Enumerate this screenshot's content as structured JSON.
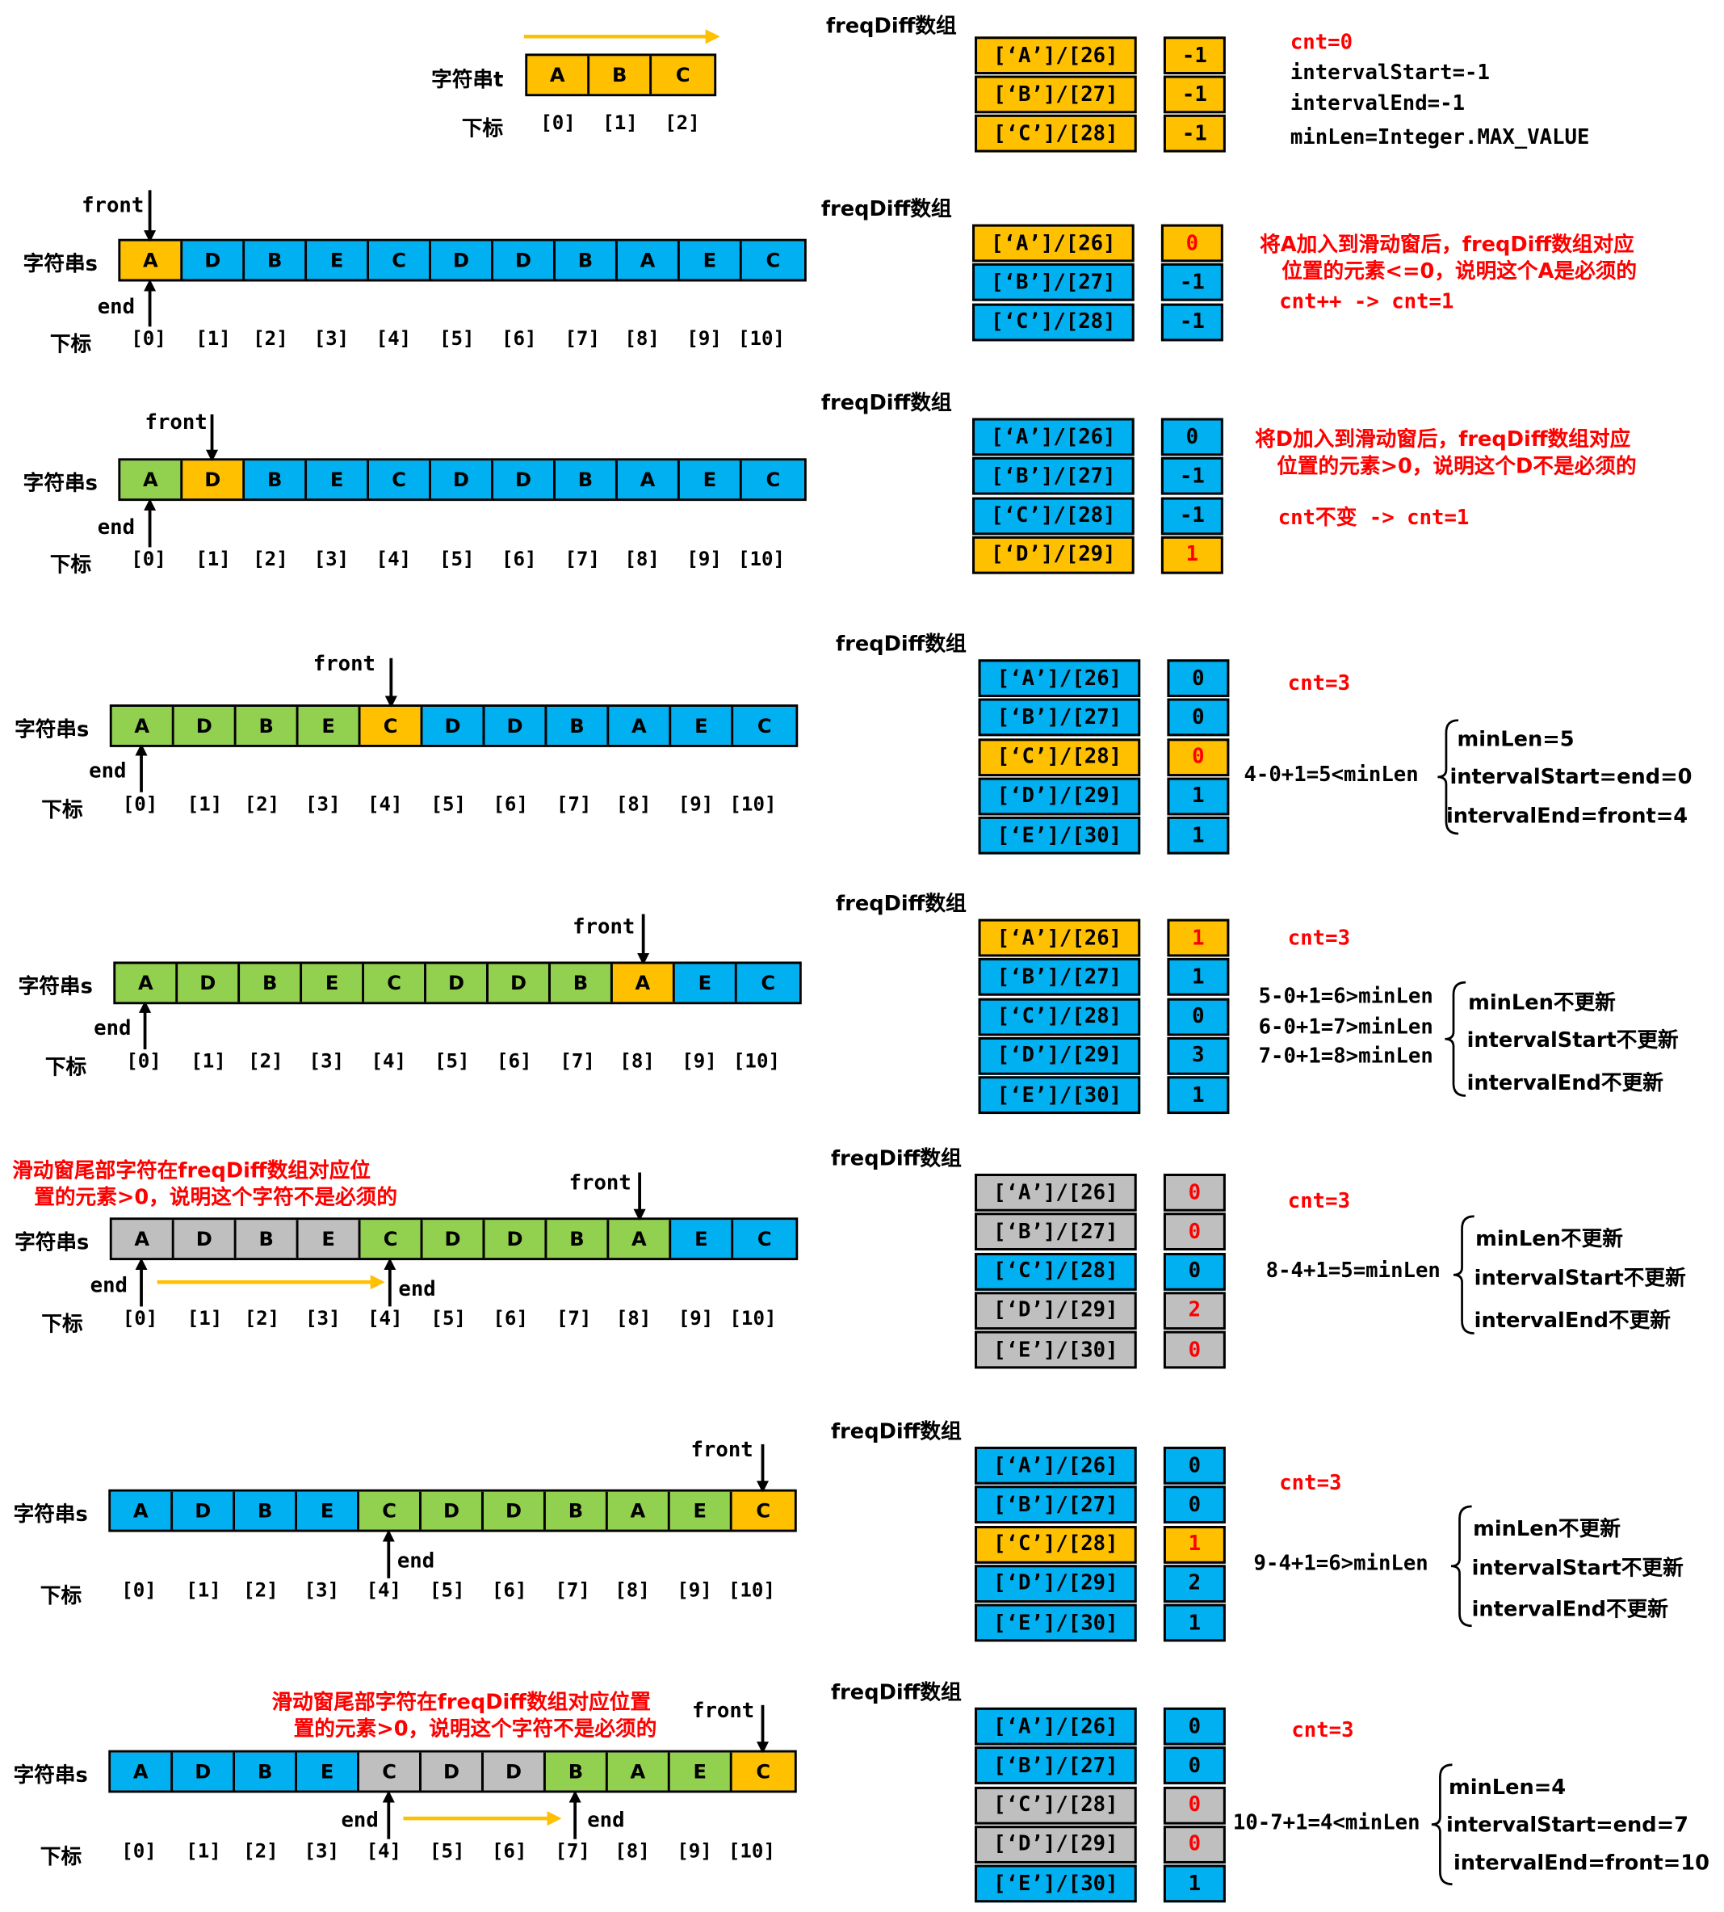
{
  "labels": {
    "string_t": "字符串t",
    "string_s": "字符串s",
    "index": "下标",
    "front": "front",
    "end": "end",
    "freq_title": "freqDiff数组"
  },
  "colors": {
    "blue": "#00b0f0",
    "orange": "#ffc000",
    "green": "#92d050",
    "gray": "#bfbfbf",
    "red": "#ff0000"
  },
  "header": {
    "t_chars": [
      "A",
      "B",
      "C"
    ],
    "t_indices": [
      "[0]",
      "[1]",
      "[2]"
    ],
    "freq": [
      {
        "key": "[‘A’]/[26]",
        "val": "-1"
      },
      {
        "key": "[‘B’]/[27]",
        "val": "-1"
      },
      {
        "key": "[‘C’]/[28]",
        "val": "-1"
      }
    ],
    "vars": [
      "cnt=0",
      "intervalStart=-1",
      "intervalEnd=-1",
      "minLen=Integer.MAX_VALUE"
    ]
  },
  "s_chars": [
    "A",
    "D",
    "B",
    "E",
    "C",
    "D",
    "D",
    "B",
    "A",
    "E",
    "C"
  ],
  "s_indices": [
    "[0]",
    "[1]",
    "[2]",
    "[3]",
    "[4]",
    "[5]",
    "[6]",
    "[7]",
    "[8]",
    "[9]",
    "[10]"
  ],
  "steps": [
    {
      "colors": [
        "o",
        "b",
        "b",
        "b",
        "b",
        "b",
        "b",
        "b",
        "b",
        "b",
        "b"
      ],
      "freq": [
        {
          "key": "[‘A’]/[26]",
          "val": "0",
          "kc": "orange",
          "vc": "orange",
          "red": true
        },
        {
          "key": "[‘B’]/[27]",
          "val": "-1",
          "kc": "blue",
          "vc": "blue",
          "red": false
        },
        {
          "key": "[‘C’]/[28]",
          "val": "-1",
          "kc": "blue",
          "vc": "blue",
          "red": false
        }
      ],
      "note": [
        "将A加入到滑动窗后，freqDiff数组对应",
        "位置的元素<=0，说明这个A是必须的"
      ],
      "cnt": "cnt++  -> cnt=1"
    },
    {
      "colors": [
        "g",
        "o",
        "b",
        "b",
        "b",
        "b",
        "b",
        "b",
        "b",
        "b",
        "b"
      ],
      "freq": [
        {
          "key": "[‘A’]/[26]",
          "val": "0",
          "kc": "blue",
          "vc": "blue",
          "red": false
        },
        {
          "key": "[‘B’]/[27]",
          "val": "-1",
          "kc": "blue",
          "vc": "blue",
          "red": false
        },
        {
          "key": "[‘C’]/[28]",
          "val": "-1",
          "kc": "blue",
          "vc": "blue",
          "red": false
        },
        {
          "key": "[‘D’]/[29]",
          "val": "1",
          "kc": "orange",
          "vc": "orange",
          "red": true
        }
      ],
      "note": [
        "将D加入到滑动窗后，freqDiff数组对应",
        "位置的元素>0，说明这个D不是必须的"
      ],
      "cnt": "cnt不变  -> cnt=1"
    },
    {
      "colors": [
        "g",
        "g",
        "g",
        "g",
        "o",
        "b",
        "b",
        "b",
        "b",
        "b",
        "b"
      ],
      "freq": [
        {
          "key": "[‘A’]/[26]",
          "val": "0",
          "kc": "blue",
          "vc": "blue",
          "red": false
        },
        {
          "key": "[‘B’]/[27]",
          "val": "0",
          "kc": "blue",
          "vc": "blue",
          "red": false
        },
        {
          "key": "[‘C’]/[28]",
          "val": "0",
          "kc": "orange",
          "vc": "orange",
          "red": true
        },
        {
          "key": "[‘D’]/[29]",
          "val": "1",
          "kc": "blue",
          "vc": "blue",
          "red": false
        },
        {
          "key": "[‘E’]/[30]",
          "val": "1",
          "kc": "blue",
          "vc": "blue",
          "red": false
        }
      ],
      "cnt": "cnt=3",
      "calc": [
        "4-0+1=5<minLen"
      ],
      "brace": [
        "minLen=5",
        "intervalStart=end=0",
        "intervalEnd=front=4"
      ]
    },
    {
      "colors": [
        "g",
        "g",
        "g",
        "g",
        "g",
        "g",
        "g",
        "g",
        "o",
        "b",
        "b"
      ],
      "freq": [
        {
          "key": "[‘A’]/[26]",
          "val": "1",
          "kc": "orange",
          "vc": "orange",
          "red": true
        },
        {
          "key": "[‘B’]/[27]",
          "val": "1",
          "kc": "blue",
          "vc": "blue",
          "red": false
        },
        {
          "key": "[‘C’]/[28]",
          "val": "0",
          "kc": "blue",
          "vc": "blue",
          "red": false
        },
        {
          "key": "[‘D’]/[29]",
          "val": "3",
          "kc": "blue",
          "vc": "blue",
          "red": false
        },
        {
          "key": "[‘E’]/[30]",
          "val": "1",
          "kc": "blue",
          "vc": "blue",
          "red": false
        }
      ],
      "cnt": "cnt=3",
      "calc": [
        "5-0+1=6>minLen",
        "6-0+1=7>minLen",
        "7-0+1=8>minLen"
      ],
      "brace": [
        "minLen不更新",
        "intervalStart不更新",
        "intervalEnd不更新"
      ]
    },
    {
      "colors": [
        "y",
        "y",
        "y",
        "y",
        "g",
        "g",
        "g",
        "g",
        "g",
        "b",
        "b"
      ],
      "freq": [
        {
          "key": "[‘A’]/[26]",
          "val": "0",
          "kc": "gray",
          "vc": "gray",
          "red": true
        },
        {
          "key": "[‘B’]/[27]",
          "val": "0",
          "kc": "gray",
          "vc": "gray",
          "red": true
        },
        {
          "key": "[‘C’]/[28]",
          "val": "0",
          "kc": "blue",
          "vc": "blue",
          "red": false
        },
        {
          "key": "[‘D’]/[29]",
          "val": "2",
          "kc": "gray",
          "vc": "gray",
          "red": true
        },
        {
          "key": "[‘E’]/[30]",
          "val": "0",
          "kc": "gray",
          "vc": "gray",
          "red": true
        }
      ],
      "note": [
        "滑动窗尾部字符在freqDiff数组对应位",
        "置的元素>0，说明这个字符不是必须的"
      ],
      "cnt": "cnt=3",
      "calc": [
        "8-4+1=5=minLen"
      ],
      "brace": [
        "minLen不更新",
        "intervalStart不更新",
        "intervalEnd不更新"
      ]
    },
    {
      "colors": [
        "b",
        "b",
        "b",
        "b",
        "g",
        "g",
        "g",
        "g",
        "g",
        "g",
        "o"
      ],
      "freq": [
        {
          "key": "[‘A’]/[26]",
          "val": "0",
          "kc": "blue",
          "vc": "blue",
          "red": false
        },
        {
          "key": "[‘B’]/[27]",
          "val": "0",
          "kc": "blue",
          "vc": "blue",
          "red": false
        },
        {
          "key": "[‘C’]/[28]",
          "val": "1",
          "kc": "orange",
          "vc": "orange",
          "red": true
        },
        {
          "key": "[‘D’]/[29]",
          "val": "2",
          "kc": "blue",
          "vc": "blue",
          "red": false
        },
        {
          "key": "[‘E’]/[30]",
          "val": "1",
          "kc": "blue",
          "vc": "blue",
          "red": false
        }
      ],
      "cnt": "cnt=3",
      "calc": [
        "9-4+1=6>minLen"
      ],
      "brace": [
        "minLen不更新",
        "intervalStart不更新",
        "intervalEnd不更新"
      ]
    },
    {
      "colors": [
        "b",
        "b",
        "b",
        "b",
        "y",
        "y",
        "y",
        "g",
        "g",
        "g",
        "o"
      ],
      "freq": [
        {
          "key": "[‘A’]/[26]",
          "val": "0",
          "kc": "blue",
          "vc": "blue",
          "red": false
        },
        {
          "key": "[‘B’]/[27]",
          "val": "0",
          "kc": "blue",
          "vc": "blue",
          "red": false
        },
        {
          "key": "[‘C’]/[28]",
          "val": "0",
          "kc": "gray",
          "vc": "gray",
          "red": true
        },
        {
          "key": "[‘D’]/[29]",
          "val": "0",
          "kc": "gray",
          "vc": "gray",
          "red": true
        },
        {
          "key": "[‘E’]/[30]",
          "val": "1",
          "kc": "blue",
          "vc": "blue",
          "red": false
        }
      ],
      "note": [
        "滑动窗尾部字符在freqDiff数组对应位置",
        "置的元素>0，说明这个字符不是必须的"
      ],
      "cnt": "cnt=3",
      "calc": [
        "10-7+1=4<minLen"
      ],
      "brace": [
        "minLen=4",
        "intervalStart=end=7",
        "intervalEnd=front=10"
      ]
    }
  ]
}
